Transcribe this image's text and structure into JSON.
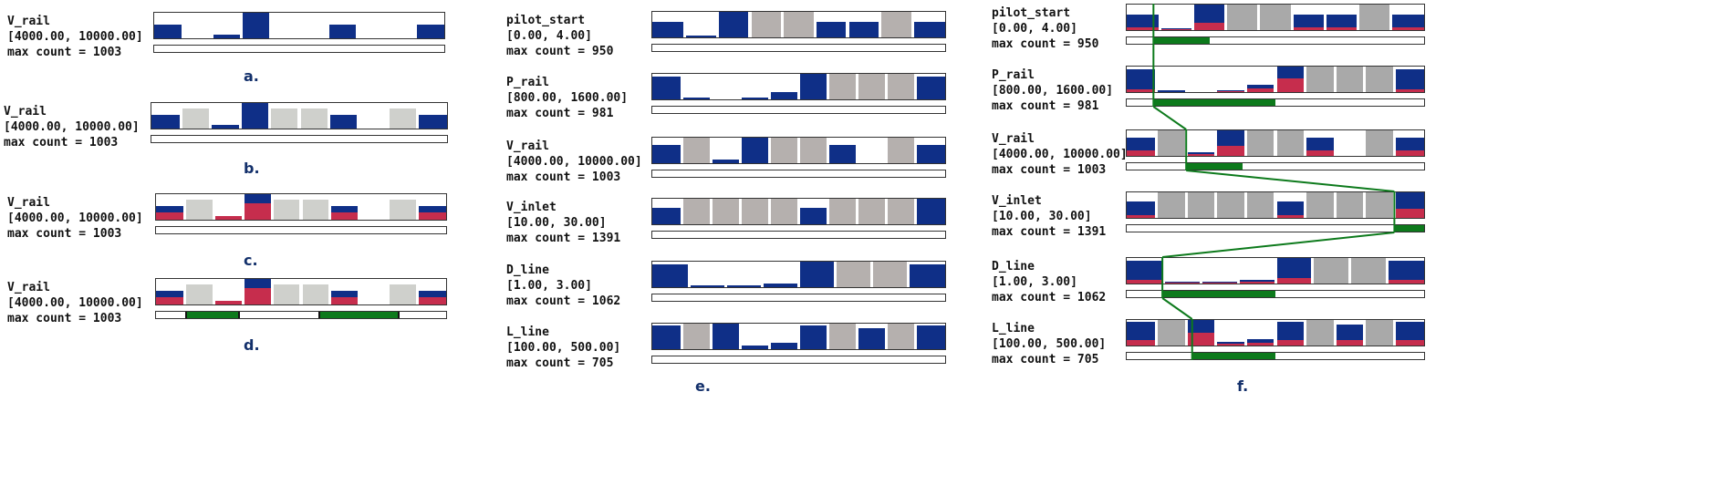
{
  "colors": {
    "blue": "#0f2f87",
    "red": "#c62d4d",
    "gray_light": "#cfd0cc",
    "gray_e": "#b5b0ae",
    "gray_f": "#a9a9a9",
    "green": "#0d7a1c"
  },
  "panels": [
    {
      "id": "a",
      "caption": "a.",
      "widgets": [
        {
          "name": "V_rail",
          "range": "[4000.00, 10000.00]",
          "max": "max count = 1003",
          "bins": [
            {
              "t": "b",
              "v": 0.55
            },
            {
              "t": "e"
            },
            {
              "t": "b",
              "v": 0.13
            },
            {
              "t": "b",
              "v": 1.0
            },
            {
              "t": "e"
            },
            {
              "t": "e"
            },
            {
              "t": "b",
              "v": 0.55
            },
            {
              "t": "e"
            },
            {
              "t": "e"
            },
            {
              "t": "b",
              "v": 0.55
            }
          ],
          "sel": []
        }
      ]
    },
    {
      "id": "b",
      "caption": "b.",
      "widgets": [
        {
          "name": "V_rail",
          "range": "[4000.00, 10000.00]",
          "max": "max count = 1003",
          "bins": [
            {
              "t": "b",
              "v": 0.55
            },
            {
              "t": "g",
              "v": 0.8
            },
            {
              "t": "b",
              "v": 0.13
            },
            {
              "t": "b",
              "v": 1.0
            },
            {
              "t": "g",
              "v": 0.8
            },
            {
              "t": "g",
              "v": 0.8
            },
            {
              "t": "b",
              "v": 0.55
            },
            {
              "t": "e"
            },
            {
              "t": "g",
              "v": 0.8
            },
            {
              "t": "b",
              "v": 0.55
            }
          ],
          "sel": []
        }
      ]
    },
    {
      "id": "c",
      "caption": "c.",
      "widgets": [
        {
          "name": "V_rail",
          "range": "[4000.00, 10000.00]",
          "max": "max count = 1003",
          "bins": [
            {
              "t": "s",
              "v": 0.55,
              "r": 0.3
            },
            {
              "t": "g",
              "v": 0.8
            },
            {
              "t": "s",
              "v": 0.13,
              "r": 0.13
            },
            {
              "t": "s",
              "v": 1.0,
              "r": 0.65
            },
            {
              "t": "g",
              "v": 0.8
            },
            {
              "t": "g",
              "v": 0.8
            },
            {
              "t": "s",
              "v": 0.55,
              "r": 0.3
            },
            {
              "t": "e"
            },
            {
              "t": "g",
              "v": 0.8
            },
            {
              "t": "s",
              "v": 0.55,
              "r": 0.3
            }
          ],
          "sel": []
        }
      ]
    },
    {
      "id": "d",
      "caption": "d.",
      "widgets": [
        {
          "name": "V_rail",
          "range": "[4000.00, 10000.00]",
          "max": "max count = 1003",
          "bins": [
            {
              "t": "s",
              "v": 0.55,
              "r": 0.3
            },
            {
              "t": "g",
              "v": 0.8
            },
            {
              "t": "s",
              "v": 0.13,
              "r": 0.13
            },
            {
              "t": "s",
              "v": 1.0,
              "r": 0.65
            },
            {
              "t": "g",
              "v": 0.8
            },
            {
              "t": "g",
              "v": 0.8
            },
            {
              "t": "s",
              "v": 0.55,
              "r": 0.3
            },
            {
              "t": "e"
            },
            {
              "t": "g",
              "v": 0.8
            },
            {
              "t": "s",
              "v": 0.55,
              "r": 0.3
            }
          ],
          "sel": [
            [
              0.1,
              0.29
            ],
            [
              0.56,
              0.84
            ]
          ]
        }
      ]
    },
    {
      "id": "e",
      "caption": "e.",
      "widgets": [
        {
          "name": "pilot_start",
          "range": "[0.00, 4.00]",
          "max": "max count = 950",
          "bins": [
            {
              "t": "b",
              "v": 0.6
            },
            {
              "t": "b",
              "v": 0.08
            },
            {
              "t": "b",
              "v": 1.0
            },
            {
              "t": "g",
              "v": 1.0
            },
            {
              "t": "g",
              "v": 1.0
            },
            {
              "t": "b",
              "v": 0.6
            },
            {
              "t": "b",
              "v": 0.6
            },
            {
              "t": "g",
              "v": 1.0
            },
            {
              "t": "b",
              "v": 0.6
            }
          ],
          "sel": []
        },
        {
          "name": "P_rail",
          "range": "[800.00, 1600.00]",
          "max": "max count = 981",
          "bins": [
            {
              "t": "b",
              "v": 0.9
            },
            {
              "t": "b",
              "v": 0.07
            },
            {
              "t": "e"
            },
            {
              "t": "b",
              "v": 0.07
            },
            {
              "t": "b",
              "v": 0.27
            },
            {
              "t": "b",
              "v": 1.0
            },
            {
              "t": "g",
              "v": 1.0
            },
            {
              "t": "g",
              "v": 1.0
            },
            {
              "t": "g",
              "v": 1.0
            },
            {
              "t": "b",
              "v": 0.9
            }
          ],
          "sel": []
        },
        {
          "name": "V_rail",
          "range": "[4000.00, 10000.00]",
          "max": "max count = 1003",
          "bins": [
            {
              "t": "b",
              "v": 0.7
            },
            {
              "t": "g",
              "v": 1.0
            },
            {
              "t": "b",
              "v": 0.13
            },
            {
              "t": "b",
              "v": 1.0
            },
            {
              "t": "g",
              "v": 1.0
            },
            {
              "t": "g",
              "v": 1.0
            },
            {
              "t": "b",
              "v": 0.7
            },
            {
              "t": "e"
            },
            {
              "t": "g",
              "v": 1.0
            },
            {
              "t": "b",
              "v": 0.7
            }
          ],
          "sel": []
        },
        {
          "name": "V_inlet",
          "range": "[10.00, 30.00]",
          "max": "max count = 1391",
          "bins": [
            {
              "t": "b",
              "v": 0.65
            },
            {
              "t": "g",
              "v": 1.0
            },
            {
              "t": "g",
              "v": 1.0
            },
            {
              "t": "g",
              "v": 1.0
            },
            {
              "t": "g",
              "v": 1.0
            },
            {
              "t": "b",
              "v": 0.65
            },
            {
              "t": "g",
              "v": 1.0
            },
            {
              "t": "g",
              "v": 1.0
            },
            {
              "t": "g",
              "v": 1.0
            },
            {
              "t": "b",
              "v": 1.0
            }
          ],
          "sel": []
        },
        {
          "name": "D_line",
          "range": "[1.00, 3.00]",
          "max": "max count = 1062",
          "bins": [
            {
              "t": "b",
              "v": 0.9
            },
            {
              "t": "b",
              "v": 0.08
            },
            {
              "t": "b",
              "v": 0.08
            },
            {
              "t": "b",
              "v": 0.13
            },
            {
              "t": "b",
              "v": 1.0
            },
            {
              "t": "g",
              "v": 1.0
            },
            {
              "t": "g",
              "v": 1.0
            },
            {
              "t": "b",
              "v": 0.9
            }
          ],
          "sel": []
        },
        {
          "name": "L_line",
          "range": "[100.00, 500.00]",
          "max": "max count = 705",
          "bins": [
            {
              "t": "b",
              "v": 0.92
            },
            {
              "t": "g",
              "v": 1.0
            },
            {
              "t": "b",
              "v": 1.0
            },
            {
              "t": "b",
              "v": 0.13
            },
            {
              "t": "b",
              "v": 0.25
            },
            {
              "t": "b",
              "v": 0.92
            },
            {
              "t": "g",
              "v": 1.0
            },
            {
              "t": "b",
              "v": 0.82
            },
            {
              "t": "g",
              "v": 1.0
            },
            {
              "t": "b",
              "v": 0.92
            }
          ],
          "sel": []
        }
      ]
    },
    {
      "id": "f",
      "caption": "f.",
      "widgets": [
        {
          "name": "pilot_start",
          "range": "[0.00, 4.00]",
          "max": "max count = 950",
          "bins": [
            {
              "t": "s",
              "v": 0.6,
              "r": 0.1
            },
            {
              "t": "s",
              "v": 0.08,
              "r": 0.05
            },
            {
              "t": "s",
              "v": 1.0,
              "r": 0.3
            },
            {
              "t": "f",
              "v": 1.0
            },
            {
              "t": "f",
              "v": 1.0
            },
            {
              "t": "s",
              "v": 0.6,
              "r": 0.1
            },
            {
              "t": "s",
              "v": 0.6,
              "r": 0.1
            },
            {
              "t": "f",
              "v": 1.0
            },
            {
              "t": "s",
              "v": 0.6,
              "r": 0.1
            }
          ],
          "sel": [
            [
              0.09,
              0.28
            ]
          ]
        },
        {
          "name": "P_rail",
          "range": "[800.00, 1600.00]",
          "max": "max count = 981",
          "bins": [
            {
              "t": "s",
              "v": 0.9,
              "r": 0.1
            },
            {
              "t": "s",
              "v": 0.07,
              "r": 0.0
            },
            {
              "t": "e"
            },
            {
              "t": "s",
              "v": 0.07,
              "r": 0.03
            },
            {
              "t": "s",
              "v": 0.27,
              "r": 0.15
            },
            {
              "t": "s",
              "v": 1.0,
              "r": 0.55
            },
            {
              "t": "f",
              "v": 1.0
            },
            {
              "t": "f",
              "v": 1.0
            },
            {
              "t": "f",
              "v": 1.0
            },
            {
              "t": "s",
              "v": 0.9,
              "r": 0.1
            }
          ],
          "sel": [
            [
              0.09,
              0.5
            ]
          ]
        },
        {
          "name": "V_rail",
          "range": "[4000.00, 10000.00]",
          "max": "max count = 1003",
          "bins": [
            {
              "t": "s",
              "v": 0.7,
              "r": 0.2
            },
            {
              "t": "f",
              "v": 1.0
            },
            {
              "t": "s",
              "v": 0.13,
              "r": 0.08
            },
            {
              "t": "s",
              "v": 1.0,
              "r": 0.4
            },
            {
              "t": "f",
              "v": 1.0
            },
            {
              "t": "f",
              "v": 1.0
            },
            {
              "t": "s",
              "v": 0.7,
              "r": 0.2
            },
            {
              "t": "e"
            },
            {
              "t": "f",
              "v": 1.0
            },
            {
              "t": "s",
              "v": 0.7,
              "r": 0.2
            }
          ],
          "sel": [
            [
              0.2,
              0.39
            ]
          ]
        },
        {
          "name": "V_inlet",
          "range": "[10.00, 30.00]",
          "max": "max count = 1391",
          "bins": [
            {
              "t": "s",
              "v": 0.65,
              "r": 0.1
            },
            {
              "t": "f",
              "v": 1.0
            },
            {
              "t": "f",
              "v": 1.0
            },
            {
              "t": "f",
              "v": 1.0
            },
            {
              "t": "f",
              "v": 1.0
            },
            {
              "t": "s",
              "v": 0.65,
              "r": 0.1
            },
            {
              "t": "f",
              "v": 1.0
            },
            {
              "t": "f",
              "v": 1.0
            },
            {
              "t": "f",
              "v": 1.0
            },
            {
              "t": "s",
              "v": 1.0,
              "r": 0.35
            }
          ],
          "sel": [
            [
              0.9,
              1.0
            ]
          ]
        },
        {
          "name": "D_line",
          "range": "[1.00, 3.00]",
          "max": "max count = 1062",
          "bins": [
            {
              "t": "s",
              "v": 0.9,
              "r": 0.15
            },
            {
              "t": "s",
              "v": 0.08,
              "r": 0.04
            },
            {
              "t": "s",
              "v": 0.08,
              "r": 0.04
            },
            {
              "t": "s",
              "v": 0.13,
              "r": 0.06
            },
            {
              "t": "s",
              "v": 1.0,
              "r": 0.2
            },
            {
              "t": "f",
              "v": 1.0
            },
            {
              "t": "f",
              "v": 1.0
            },
            {
              "t": "s",
              "v": 0.9,
              "r": 0.15
            }
          ],
          "sel": [
            [
              0.12,
              0.5
            ]
          ]
        },
        {
          "name": "L_line",
          "range": "[100.00, 500.00]",
          "max": "max count = 705",
          "bins": [
            {
              "t": "s",
              "v": 0.92,
              "r": 0.2
            },
            {
              "t": "f",
              "v": 1.0
            },
            {
              "t": "s",
              "v": 1.0,
              "r": 0.5
            },
            {
              "t": "s",
              "v": 0.13,
              "r": 0.06
            },
            {
              "t": "s",
              "v": 0.25,
              "r": 0.12
            },
            {
              "t": "s",
              "v": 0.92,
              "r": 0.2
            },
            {
              "t": "f",
              "v": 1.0
            },
            {
              "t": "s",
              "v": 0.82,
              "r": 0.2
            },
            {
              "t": "f",
              "v": 1.0
            },
            {
              "t": "s",
              "v": 0.92,
              "r": 0.2
            }
          ],
          "sel": [
            [
              0.22,
              0.5
            ]
          ]
        }
      ]
    }
  ]
}
